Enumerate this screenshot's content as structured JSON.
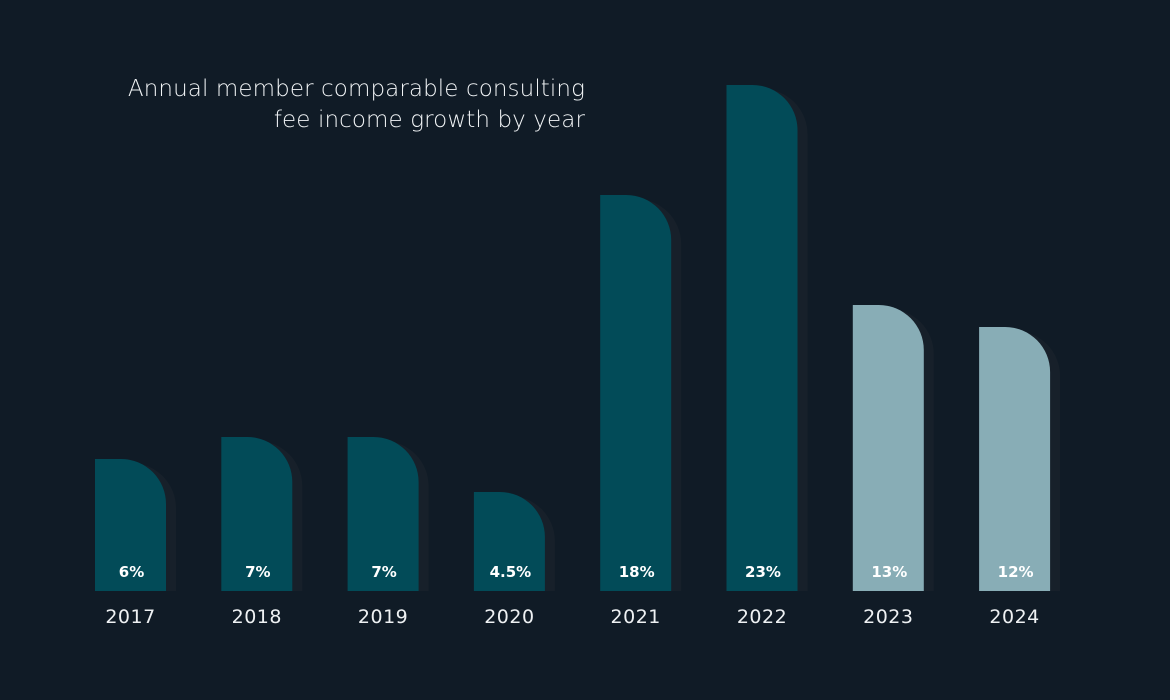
{
  "chart_data": {
    "type": "bar",
    "title_lines": [
      "Annual member comparable consulting",
      "fee income growth by year"
    ],
    "categories": [
      "2017",
      "2018",
      "2019",
      "2020",
      "2021",
      "2022",
      "2023",
      "2024"
    ],
    "values": [
      6,
      7,
      7,
      4.5,
      18,
      23,
      13,
      12
    ],
    "value_labels": [
      "6%",
      "7%",
      "7%",
      "4.5%",
      "18%",
      "23%",
      "13%",
      "12%"
    ],
    "colors": {
      "background": "#101b26",
      "bar_actual": "#024b58",
      "bar_light": "#88adb6",
      "bar_shadow": "#17202a",
      "text": "#eef1f3"
    },
    "bar_color_keys": [
      "bar_actual",
      "bar_actual",
      "bar_actual",
      "bar_actual",
      "bar_actual",
      "bar_actual",
      "bar_light",
      "bar_light"
    ],
    "xlabel": "",
    "ylabel": "",
    "grid": false
  }
}
